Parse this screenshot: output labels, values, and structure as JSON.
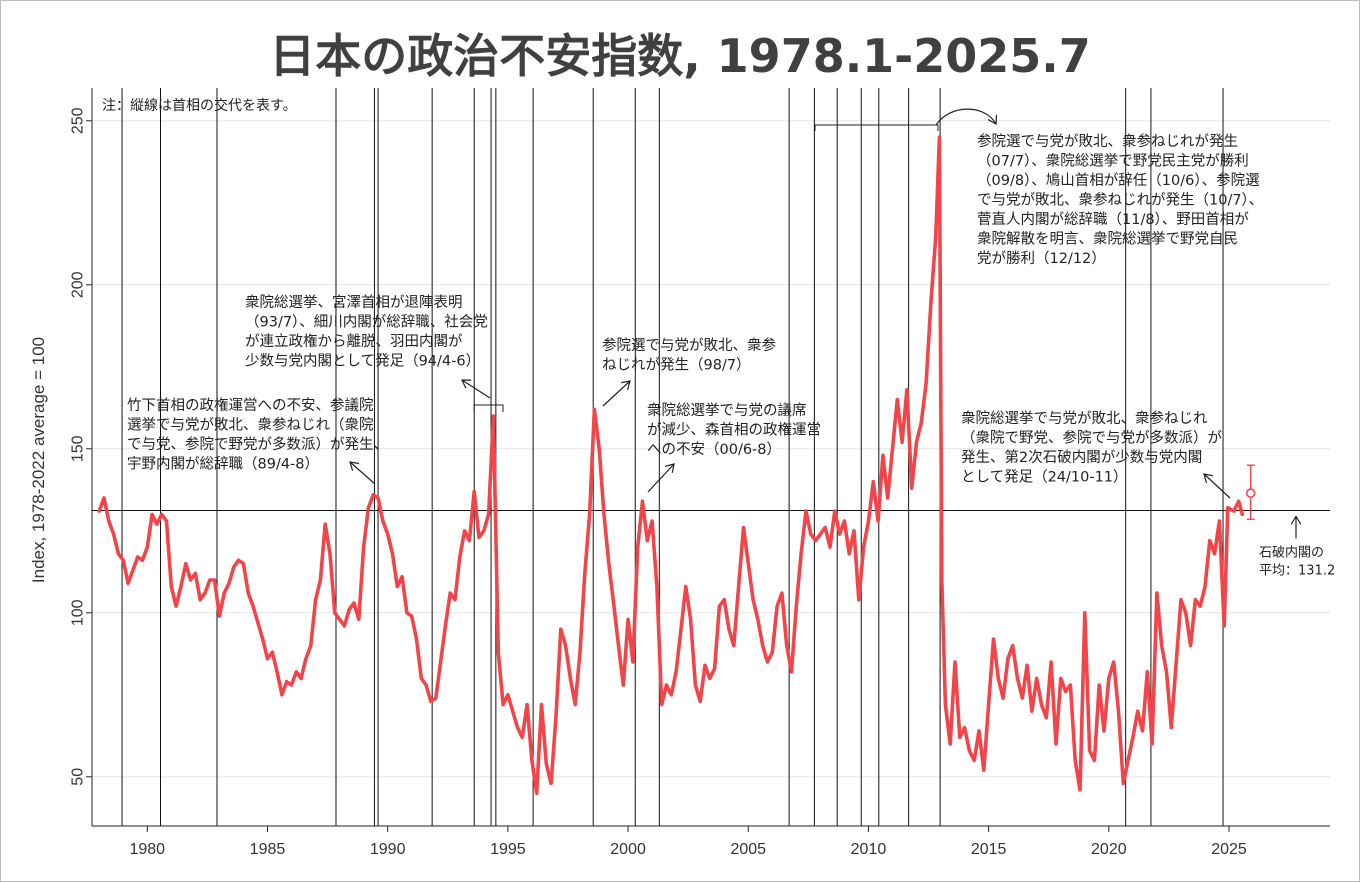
{
  "chart_data": {
    "type": "line",
    "title": "日本の政治不安指数, 1978.1-2025.7",
    "ylabel": "Index, 1978-2022 average = 100",
    "xlabel": "",
    "xlim": [
      1977.7,
      2029.2
    ],
    "ylim": [
      35,
      260
    ],
    "x_ticks": [
      1980,
      1985,
      1990,
      1995,
      2000,
      2005,
      2010,
      2015,
      2020,
      2025
    ],
    "y_ticks": [
      50,
      100,
      150,
      200,
      250
    ],
    "note": "注：縦線は首相の交代を表す。",
    "reference_line": {
      "value": 131.2,
      "label_lines": [
        "石破内閣の",
        "平均：131.2"
      ]
    },
    "pm_changes": [
      1978.95,
      1980.55,
      1982.9,
      1987.85,
      1989.45,
      1989.6,
      1991.85,
      1993.6,
      1994.3,
      1994.5,
      1996.05,
      1998.55,
      2000.3,
      2001.3,
      2006.7,
      2007.75,
      2008.7,
      2009.7,
      2010.43,
      2011.67,
      2012.98,
      2020.7,
      2021.75,
      2024.75
    ],
    "series": [
      {
        "color": "#f2454a",
        "points": [
          [
            1978.0,
            131
          ],
          [
            1978.2,
            135
          ],
          [
            1978.4,
            128
          ],
          [
            1978.6,
            124
          ],
          [
            1978.8,
            118
          ],
          [
            1979.0,
            116
          ],
          [
            1979.2,
            109
          ],
          [
            1979.4,
            113
          ],
          [
            1979.6,
            117
          ],
          [
            1979.8,
            116
          ],
          [
            1980.0,
            120
          ],
          [
            1980.2,
            130
          ],
          [
            1980.4,
            127
          ],
          [
            1980.6,
            130
          ],
          [
            1980.8,
            128
          ],
          [
            1981.0,
            108
          ],
          [
            1981.2,
            102
          ],
          [
            1981.4,
            108
          ],
          [
            1981.6,
            115
          ],
          [
            1981.8,
            110
          ],
          [
            1982.0,
            112
          ],
          [
            1982.2,
            104
          ],
          [
            1982.4,
            106
          ],
          [
            1982.6,
            110
          ],
          [
            1982.8,
            110
          ],
          [
            1983.0,
            99
          ],
          [
            1983.2,
            106
          ],
          [
            1983.4,
            109
          ],
          [
            1983.6,
            114
          ],
          [
            1983.8,
            116
          ],
          [
            1984.0,
            115
          ],
          [
            1984.2,
            106
          ],
          [
            1984.4,
            102
          ],
          [
            1984.6,
            97
          ],
          [
            1984.8,
            92
          ],
          [
            1985.0,
            86
          ],
          [
            1985.2,
            88
          ],
          [
            1985.4,
            82
          ],
          [
            1985.6,
            75
          ],
          [
            1985.8,
            79
          ],
          [
            1986.0,
            78
          ],
          [
            1986.2,
            82
          ],
          [
            1986.4,
            80
          ],
          [
            1986.6,
            86
          ],
          [
            1986.8,
            90
          ],
          [
            1987.0,
            104
          ],
          [
            1987.2,
            110
          ],
          [
            1987.4,
            127
          ],
          [
            1987.6,
            118
          ],
          [
            1987.8,
            100
          ],
          [
            1988.0,
            98
          ],
          [
            1988.2,
            96
          ],
          [
            1988.4,
            101
          ],
          [
            1988.6,
            103
          ],
          [
            1988.8,
            98
          ],
          [
            1989.0,
            120
          ],
          [
            1989.2,
            132
          ],
          [
            1989.4,
            136
          ],
          [
            1989.6,
            135
          ],
          [
            1989.8,
            128
          ],
          [
            1990.0,
            124
          ],
          [
            1990.2,
            118
          ],
          [
            1990.4,
            108
          ],
          [
            1990.6,
            111
          ],
          [
            1990.8,
            100
          ],
          [
            1991.0,
            99
          ],
          [
            1991.2,
            92
          ],
          [
            1991.4,
            80
          ],
          [
            1991.6,
            78
          ],
          [
            1991.8,
            73
          ],
          [
            1992.0,
            74
          ],
          [
            1992.2,
            85
          ],
          [
            1992.4,
            96
          ],
          [
            1992.6,
            106
          ],
          [
            1992.8,
            104
          ],
          [
            1993.0,
            117
          ],
          [
            1993.2,
            125
          ],
          [
            1993.4,
            122
          ],
          [
            1993.6,
            137
          ],
          [
            1993.8,
            123
          ],
          [
            1994.0,
            125
          ],
          [
            1994.2,
            130
          ],
          [
            1994.4,
            160
          ],
          [
            1994.6,
            88
          ],
          [
            1994.8,
            72
          ],
          [
            1995.0,
            75
          ],
          [
            1995.2,
            70
          ],
          [
            1995.4,
            65
          ],
          [
            1995.6,
            62
          ],
          [
            1995.8,
            72
          ],
          [
            1996.0,
            55
          ],
          [
            1996.2,
            45
          ],
          [
            1996.4,
            72
          ],
          [
            1996.6,
            54
          ],
          [
            1996.8,
            48
          ],
          [
            1997.0,
            68
          ],
          [
            1997.2,
            95
          ],
          [
            1997.4,
            90
          ],
          [
            1997.6,
            80
          ],
          [
            1997.8,
            72
          ],
          [
            1998.0,
            88
          ],
          [
            1998.2,
            112
          ],
          [
            1998.4,
            130
          ],
          [
            1998.6,
            162
          ],
          [
            1998.8,
            150
          ],
          [
            1999.0,
            130
          ],
          [
            1999.2,
            115
          ],
          [
            1999.4,
            103
          ],
          [
            1999.6,
            90
          ],
          [
            1999.8,
            78
          ],
          [
            2000.0,
            98
          ],
          [
            2000.2,
            85
          ],
          [
            2000.4,
            120
          ],
          [
            2000.6,
            134
          ],
          [
            2000.8,
            122
          ],
          [
            2001.0,
            128
          ],
          [
            2001.2,
            108
          ],
          [
            2001.4,
            72
          ],
          [
            2001.6,
            78
          ],
          [
            2001.8,
            75
          ],
          [
            2002.0,
            82
          ],
          [
            2002.2,
            95
          ],
          [
            2002.4,
            108
          ],
          [
            2002.6,
            98
          ],
          [
            2002.8,
            78
          ],
          [
            2003.0,
            73
          ],
          [
            2003.2,
            84
          ],
          [
            2003.4,
            80
          ],
          [
            2003.6,
            83
          ],
          [
            2003.8,
            102
          ],
          [
            2004.0,
            104
          ],
          [
            2004.2,
            95
          ],
          [
            2004.4,
            90
          ],
          [
            2004.6,
            108
          ],
          [
            2004.8,
            126
          ],
          [
            2005.0,
            115
          ],
          [
            2005.2,
            104
          ],
          [
            2005.4,
            98
          ],
          [
            2005.6,
            90
          ],
          [
            2005.8,
            85
          ],
          [
            2006.0,
            88
          ],
          [
            2006.2,
            102
          ],
          [
            2006.4,
            106
          ],
          [
            2006.6,
            90
          ],
          [
            2006.8,
            82
          ],
          [
            2007.0,
            102
          ],
          [
            2007.2,
            118
          ],
          [
            2007.4,
            131
          ],
          [
            2007.6,
            124
          ],
          [
            2007.8,
            122
          ],
          [
            2008.0,
            124
          ],
          [
            2008.2,
            126
          ],
          [
            2008.4,
            120
          ],
          [
            2008.6,
            131
          ],
          [
            2008.8,
            124
          ],
          [
            2009.0,
            128
          ],
          [
            2009.2,
            118
          ],
          [
            2009.4,
            125
          ],
          [
            2009.6,
            104
          ],
          [
            2009.8,
            120
          ],
          [
            2010.0,
            128
          ],
          [
            2010.2,
            140
          ],
          [
            2010.4,
            128
          ],
          [
            2010.6,
            148
          ],
          [
            2010.8,
            135
          ],
          [
            2011.0,
            150
          ],
          [
            2011.2,
            165
          ],
          [
            2011.4,
            152
          ],
          [
            2011.6,
            168
          ],
          [
            2011.8,
            138
          ],
          [
            2012.0,
            152
          ],
          [
            2012.2,
            158
          ],
          [
            2012.4,
            170
          ],
          [
            2012.6,
            195
          ],
          [
            2012.8,
            215
          ],
          [
            2012.95,
            245
          ],
          [
            2013.05,
            110
          ],
          [
            2013.2,
            72
          ],
          [
            2013.4,
            60
          ],
          [
            2013.6,
            85
          ],
          [
            2013.8,
            62
          ],
          [
            2014.0,
            65
          ],
          [
            2014.2,
            58
          ],
          [
            2014.4,
            55
          ],
          [
            2014.6,
            64
          ],
          [
            2014.8,
            52
          ],
          [
            2015.0,
            72
          ],
          [
            2015.2,
            92
          ],
          [
            2015.4,
            80
          ],
          [
            2015.6,
            74
          ],
          [
            2015.8,
            86
          ],
          [
            2016.0,
            90
          ],
          [
            2016.2,
            80
          ],
          [
            2016.4,
            74
          ],
          [
            2016.6,
            84
          ],
          [
            2016.8,
            70
          ],
          [
            2017.0,
            80
          ],
          [
            2017.2,
            72
          ],
          [
            2017.4,
            68
          ],
          [
            2017.6,
            85
          ],
          [
            2017.8,
            60
          ],
          [
            2018.0,
            80
          ],
          [
            2018.2,
            76
          ],
          [
            2018.4,
            78
          ],
          [
            2018.6,
            55
          ],
          [
            2018.8,
            46
          ],
          [
            2019.0,
            100
          ],
          [
            2019.2,
            58
          ],
          [
            2019.4,
            55
          ],
          [
            2019.6,
            78
          ],
          [
            2019.8,
            64
          ],
          [
            2020.0,
            80
          ],
          [
            2020.2,
            85
          ],
          [
            2020.4,
            70
          ],
          [
            2020.6,
            48
          ],
          [
            2020.8,
            55
          ],
          [
            2021.0,
            62
          ],
          [
            2021.2,
            70
          ],
          [
            2021.4,
            64
          ],
          [
            2021.6,
            82
          ],
          [
            2021.8,
            60
          ],
          [
            2022.0,
            106
          ],
          [
            2022.2,
            90
          ],
          [
            2022.4,
            82
          ],
          [
            2022.6,
            65
          ],
          [
            2022.8,
            85
          ],
          [
            2023.0,
            104
          ],
          [
            2023.2,
            100
          ],
          [
            2023.4,
            90
          ],
          [
            2023.6,
            104
          ],
          [
            2023.8,
            102
          ],
          [
            2024.0,
            108
          ],
          [
            2024.2,
            122
          ],
          [
            2024.4,
            118
          ],
          [
            2024.6,
            128
          ],
          [
            2024.8,
            96
          ],
          [
            2024.95,
            132
          ],
          [
            2025.2,
            131
          ],
          [
            2025.4,
            134
          ],
          [
            2025.55,
            130
          ]
        ]
      }
    ],
    "forecast_point": {
      "x": 2025.9,
      "y": 136.5,
      "low": 128.5,
      "high": 145
    },
    "annotations": [
      {
        "lines": [
          "竹下首相の政権運営への不安、参議院",
          "選挙で与党が敗北、衆参ねじれ（衆院",
          "で与党、参院で野党が多数派）が発生、",
          "宇野内閣が総辞職（89/4-8）"
        ]
      },
      {
        "lines": [
          "衆院総選挙、宮澤首相が退陣表明",
          "（93/7）、細川内閣が総辞職、社会党",
          "が連立政権から離脱、羽田内閣が",
          "少数与党内閣として発足（94/4-6）"
        ]
      },
      {
        "lines": [
          "参院選で与党が敗北、衆参",
          "ねじれが発生（98/7）"
        ]
      },
      {
        "lines": [
          "衆院総選挙で与党の議席",
          "が減少、森首相の政権運営",
          "への不安（00/6-8）"
        ]
      },
      {
        "lines": [
          "参院選で与党が敗北、衆参ねじれが発生",
          "（07/7）、衆院総選挙で野党民主党が勝利",
          "（09/8）、鳩山首相が辞任（10/6）、参院選",
          "で与党が敗北、衆参ねじれが発生（10/7）、",
          "菅直人内閣が総辞職（11/8）、野田首相が",
          "衆院解散を明言、衆院総選挙で野党自民",
          "党が勝利（12/12）"
        ]
      },
      {
        "lines": [
          "衆院総選挙で与党が敗北、衆参ねじれ",
          "（衆院で野党、参院で与党が多数派）が",
          "発生、第2次石破内閣が少数与党内閣",
          "として発足（24/10-11）"
        ]
      }
    ]
  }
}
